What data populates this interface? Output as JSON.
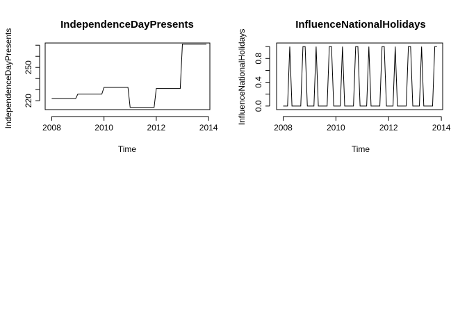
{
  "chart_data": [
    {
      "type": "line",
      "title": "IndependenceDayPresents",
      "xlabel": "Time",
      "ylabel": "IndependenceDayPresents",
      "xlim": [
        2007.75,
        2014.05
      ],
      "ylim": [
        212,
        272
      ],
      "x_ticks": [
        2008,
        2010,
        2012,
        2014
      ],
      "x_tick_labels": [
        "2008",
        "2010",
        "2012",
        "2014"
      ],
      "y_ticks": [
        220,
        250
      ],
      "y_tick_labels": [
        "220",
        "250"
      ],
      "y_minor_ticks": [
        230,
        240,
        260,
        270
      ],
      "grid": false,
      "series": [
        {
          "x": [
            2008.0,
            2008.917,
            2009.0,
            2009.917,
            2010.0,
            2010.917,
            2011.0,
            2011.917,
            2012.0,
            2012.917,
            2013.0,
            2013.917
          ],
          "y": [
            222,
            222,
            226,
            226,
            232,
            232,
            214,
            214,
            231,
            231,
            271,
            271
          ]
        }
      ]
    },
    {
      "type": "line",
      "title": "InfluenceNationalHolidays",
      "xlabel": "Time",
      "ylabel": "InfluenceNationalHolidays",
      "xlim": [
        2007.75,
        2014.05
      ],
      "ylim": [
        -0.06,
        1.06
      ],
      "x_ticks": [
        2008,
        2010,
        2012,
        2014
      ],
      "x_tick_labels": [
        "2008",
        "2010",
        "2012",
        "2014"
      ],
      "y_ticks": [
        0.0,
        0.4,
        0.8
      ],
      "y_tick_labels": [
        "0.0",
        "0.4",
        "0.8"
      ],
      "y_minor_ticks": [
        0.2,
        0.6,
        1.0
      ],
      "grid": false,
      "start": 2008.0,
      "frequency": 12,
      "series": [
        {
          "y": [
            0,
            0,
            0,
            1,
            0,
            0,
            0,
            0,
            0,
            1,
            1,
            0,
            0,
            0,
            0,
            1,
            0,
            0,
            0,
            0,
            0,
            1,
            1,
            0,
            0,
            0,
            0,
            1,
            0,
            0,
            0,
            0,
            0,
            1,
            1,
            0,
            0,
            0,
            0,
            1,
            0,
            0,
            0,
            0,
            0,
            1,
            1,
            0,
            0,
            0,
            0,
            1,
            0,
            0,
            0,
            0,
            0,
            1,
            1,
            0,
            0,
            0,
            0,
            1,
            0,
            0,
            0,
            0,
            0,
            1,
            1
          ]
        }
      ]
    }
  ]
}
